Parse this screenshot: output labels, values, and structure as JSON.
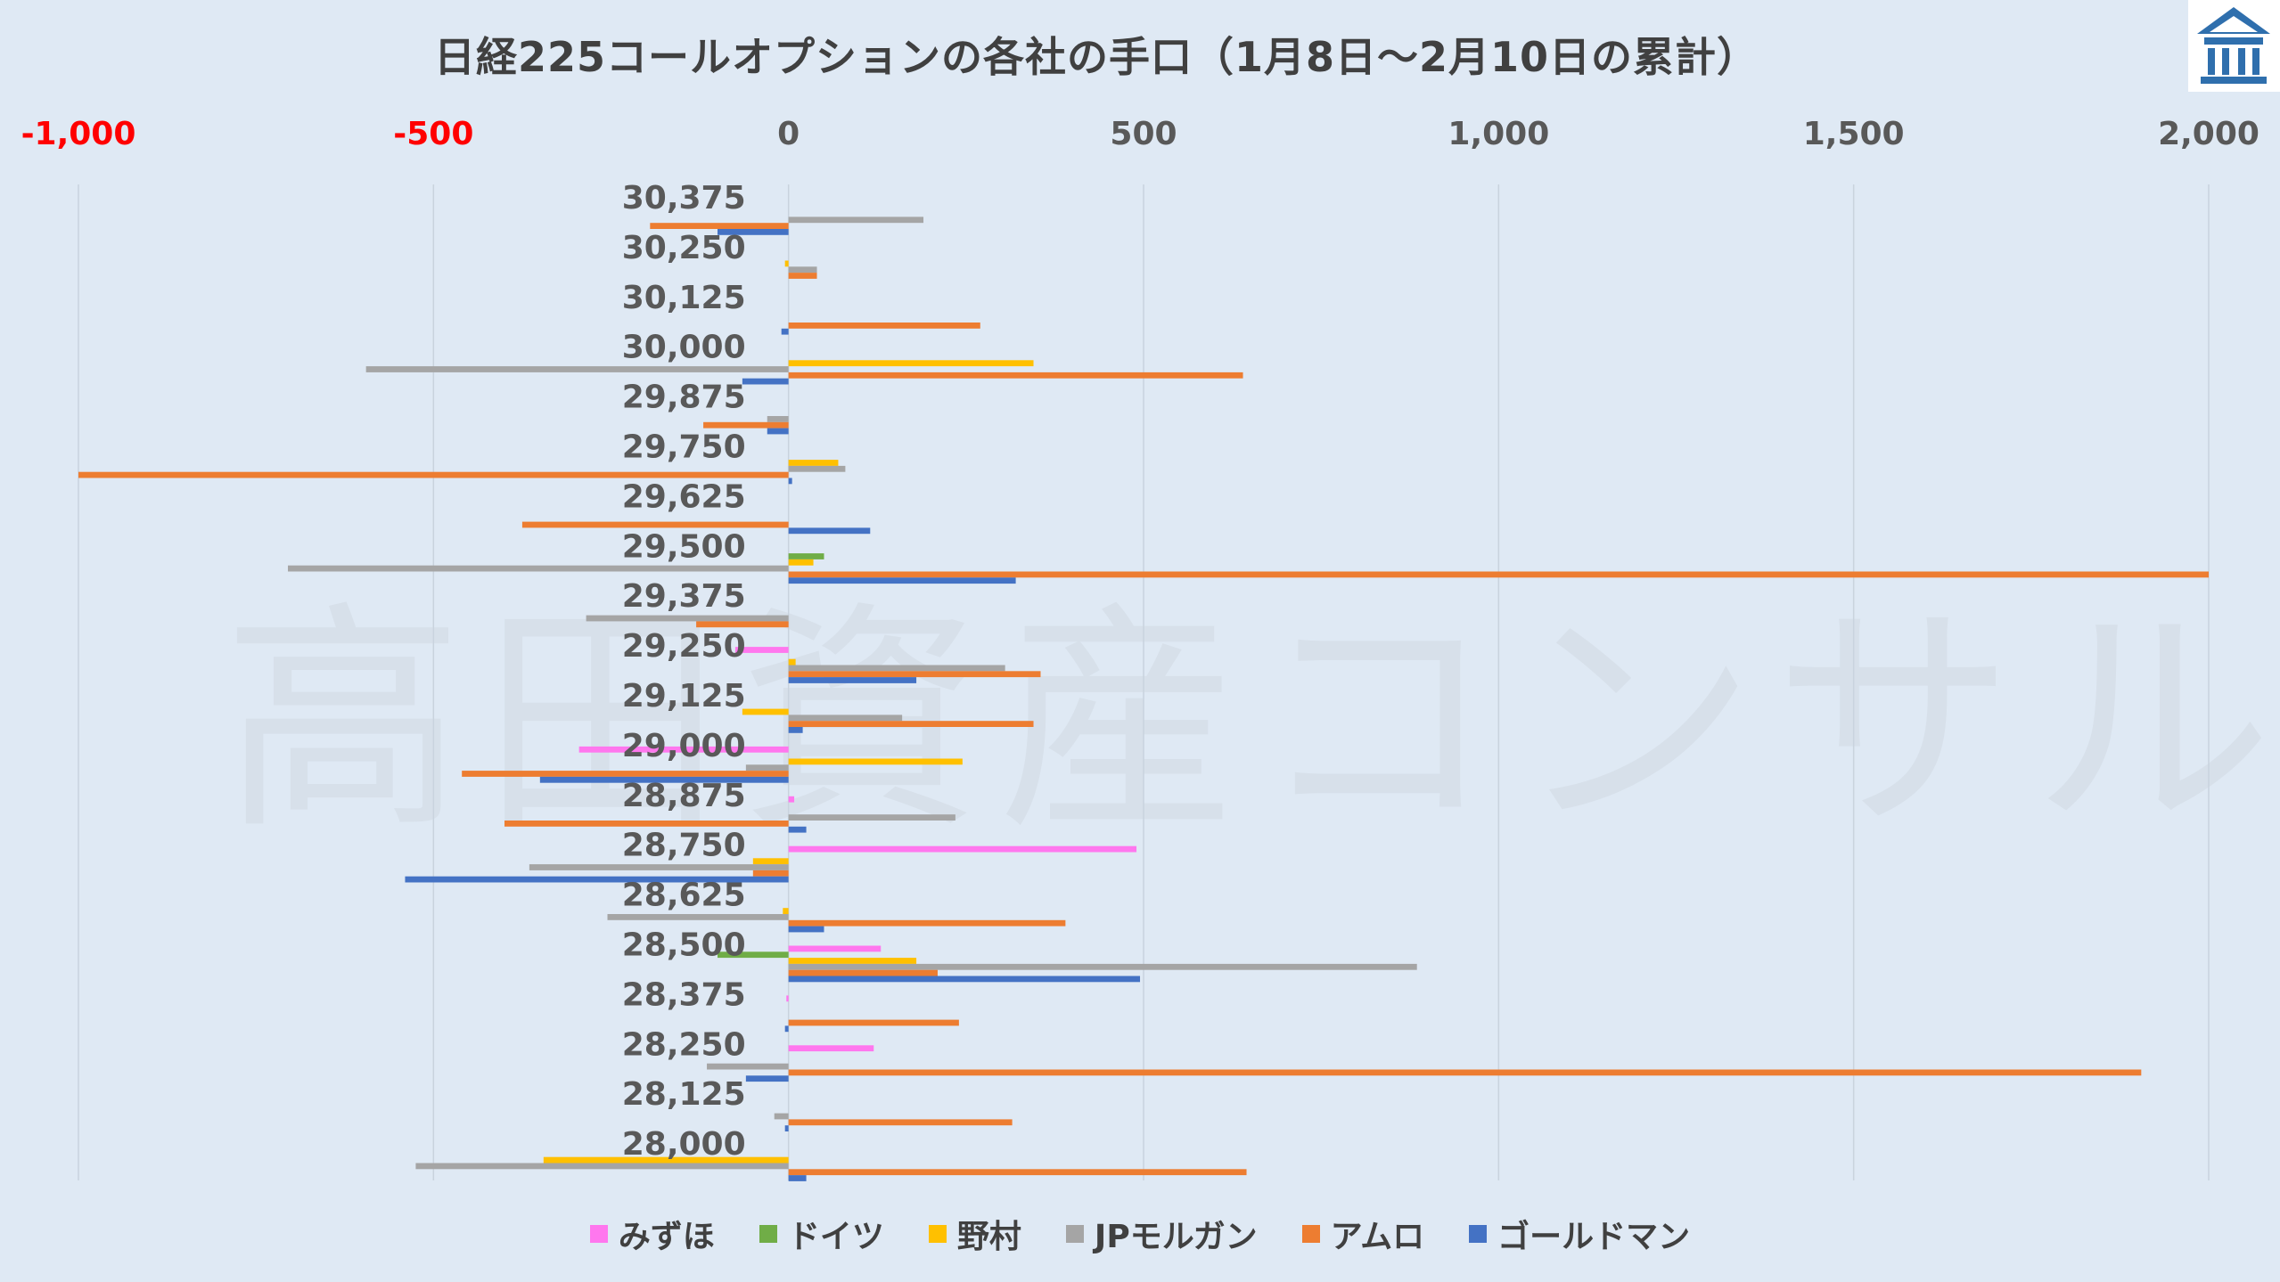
{
  "page": {
    "title": "日経225コールオプションの各社の手口（1月8日～2月10日の累計）",
    "watermark": "高田資産コンサル"
  },
  "colors": {
    "background": "#dfe9f4",
    "negative_tick": "#ff0000",
    "gridline": "#c9d3de"
  },
  "logo": {
    "icon": "building-logo-icon"
  },
  "chart_data": {
    "type": "bar",
    "orientation": "horizontal",
    "title": "日経225コールオプションの各社の手口（1月8日～2月10日の累計）",
    "xlim": [
      -1000,
      2000
    ],
    "xticks": [
      -1000,
      -500,
      0,
      500,
      1000,
      1500,
      2000
    ],
    "xtick_labels": [
      "-1,000",
      "-500",
      "0",
      "500",
      "1,000",
      "1,500",
      "2,000"
    ],
    "grid": "vertical",
    "legend_position": "bottom",
    "categories": [
      "30,375",
      "30,250",
      "30,125",
      "30,000",
      "29,875",
      "29,750",
      "29,625",
      "29,500",
      "29,375",
      "29,250",
      "29,125",
      "29,000",
      "28,875",
      "28,750",
      "28,625",
      "28,500",
      "28,375",
      "28,250",
      "28,125",
      "28,000"
    ],
    "series": [
      {
        "name": "みずほ",
        "color": "#ff77ee",
        "values": [
          0,
          0,
          0,
          0,
          0,
          0,
          0,
          0,
          0,
          -75,
          0,
          -295,
          8,
          490,
          0,
          130,
          -3,
          120,
          0,
          0
        ]
      },
      {
        "name": "ドイツ",
        "color": "#70ad47",
        "values": [
          0,
          0,
          0,
          0,
          0,
          0,
          0,
          50,
          0,
          0,
          0,
          0,
          0,
          0,
          0,
          -100,
          0,
          0,
          0,
          0
        ]
      },
      {
        "name": "野村",
        "color": "#ffc000",
        "values": [
          0,
          -5,
          0,
          345,
          0,
          70,
          0,
          35,
          0,
          10,
          -65,
          245,
          0,
          -50,
          -8,
          180,
          0,
          0,
          0,
          -345
        ]
      },
      {
        "name": "JPモルガン",
        "color": "#a5a5a5",
        "values": [
          190,
          40,
          0,
          -595,
          -30,
          80,
          0,
          -705,
          -285,
          305,
          160,
          -60,
          235,
          -365,
          -255,
          885,
          0,
          -115,
          -20,
          -525
        ]
      },
      {
        "name": "アムロ",
        "color": "#ed7d31",
        "values": [
          -195,
          40,
          270,
          640,
          -120,
          -1000,
          -375,
          2000,
          -130,
          355,
          345,
          -460,
          -400,
          -50,
          390,
          210,
          240,
          1905,
          315,
          645
        ]
      },
      {
        "name": "ゴールドマン",
        "color": "#4472c4",
        "values": [
          -100,
          0,
          -10,
          -65,
          -30,
          5,
          115,
          320,
          0,
          180,
          20,
          -350,
          25,
          -540,
          50,
          495,
          -5,
          -60,
          -5,
          25
        ]
      }
    ]
  }
}
